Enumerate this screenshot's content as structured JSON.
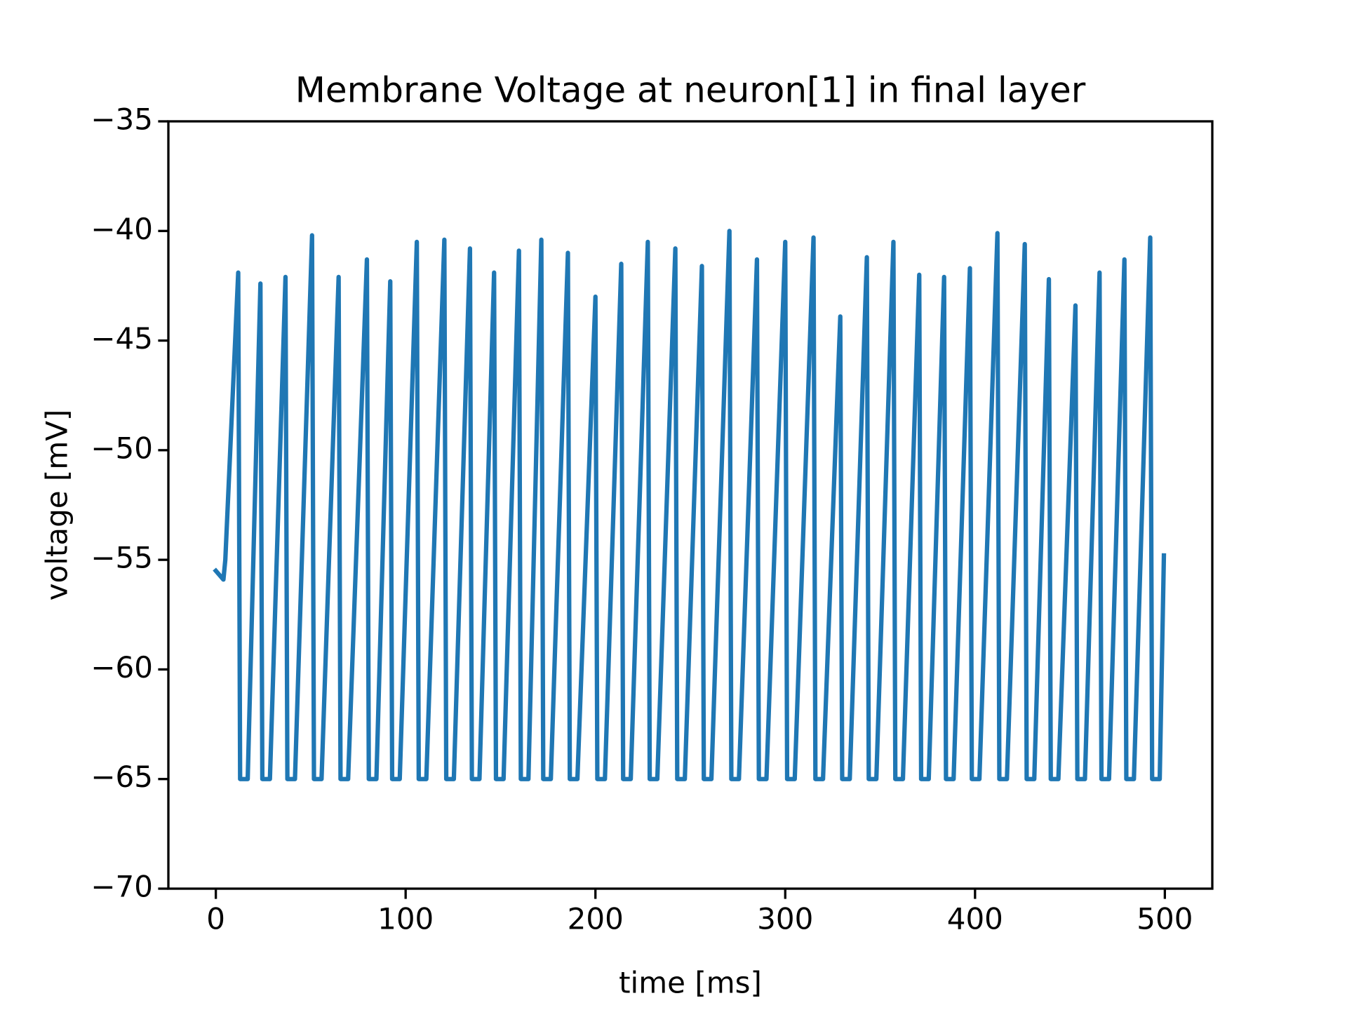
{
  "chart_data": {
    "type": "line",
    "title": "Membrane Voltage at neuron[1] in final layer",
    "xlabel": "time [ms]",
    "ylabel": "voltage [mV]",
    "xlim": [
      -25,
      525
    ],
    "ylim": [
      -70,
      -35
    ],
    "xticks": [
      0,
      100,
      200,
      300,
      400,
      500
    ],
    "yticks": [
      {
        "value": -70,
        "label": "−70"
      },
      {
        "value": -65,
        "label": "−65"
      },
      {
        "value": -60,
        "label": "−60"
      },
      {
        "value": -55,
        "label": "−55"
      },
      {
        "value": -50,
        "label": "−50"
      },
      {
        "value": -45,
        "label": "−45"
      },
      {
        "value": -40,
        "label": "−40"
      },
      {
        "value": -35,
        "label": "−35"
      }
    ],
    "grid": false,
    "series": [
      {
        "color": "#1f77b4",
        "x": [
          0,
          4,
          5,
          11.8,
          12.8,
          16.8,
          23.5,
          24.5,
          28.5,
          36.7,
          37.7,
          41.7,
          50.7,
          51.7,
          55.7,
          64.7,
          65.7,
          69.7,
          79.6,
          80.6,
          84.6,
          91.9,
          92.9,
          96.9,
          105.9,
          106.9,
          110.9,
          120.4,
          121.4,
          125.4,
          133.9,
          134.9,
          138.9,
          146.6,
          147.6,
          151.6,
          159.7,
          160.7,
          164.7,
          171.5,
          172.5,
          176.5,
          185.5,
          186.5,
          190.5,
          200,
          201,
          205,
          213.6,
          214.6,
          218.6,
          227.6,
          228.6,
          232.6,
          242.1,
          243.1,
          247.1,
          256.1,
          257.1,
          261.1,
          270.6,
          271.6,
          275.6,
          285.1,
          286.1,
          290.1,
          300,
          301,
          305,
          314.9,
          315.9,
          319.9,
          329,
          330,
          334,
          343,
          344,
          348,
          357,
          358,
          362,
          370.6,
          371.6,
          375.6,
          383.7,
          384.7,
          388.7,
          397.3,
          398.3,
          402.3,
          411.8,
          412.8,
          416.8,
          426.2,
          427.2,
          431.2,
          438.9,
          439.9,
          443.9,
          452.9,
          453.9,
          457.9,
          465.6,
          466.6,
          470.6,
          478.7,
          479.7,
          483.7,
          492.3,
          493.3,
          497.3,
          499.5
        ],
        "values": [
          -55.5,
          -55.9,
          -55,
          -41.9,
          -65,
          -65,
          -42.4,
          -65,
          -65,
          -42.1,
          -65,
          -65,
          -40.2,
          -65,
          -65,
          -42.1,
          -65,
          -65,
          -41.3,
          -65,
          -65,
          -42.3,
          -65,
          -65,
          -40.5,
          -65,
          -65,
          -40.4,
          -65,
          -65,
          -40.8,
          -65,
          -65,
          -41.9,
          -65,
          -65,
          -40.9,
          -65,
          -65,
          -40.4,
          -65,
          -65,
          -41.0,
          -65,
          -65,
          -43.0,
          -65,
          -65,
          -41.5,
          -65,
          -65,
          -40.5,
          -65,
          -65,
          -40.8,
          -65,
          -65,
          -41.6,
          -65,
          -65,
          -40.0,
          -65,
          -65,
          -41.3,
          -65,
          -65,
          -40.5,
          -65,
          -65,
          -40.3,
          -65,
          -65,
          -43.9,
          -65,
          -65,
          -41.2,
          -65,
          -65,
          -40.5,
          -65,
          -65,
          -42.0,
          -65,
          -65,
          -42.1,
          -65,
          -65,
          -41.7,
          -65,
          -65,
          -40.1,
          -65,
          -65,
          -40.6,
          -65,
          -65,
          -42.2,
          -65,
          -65,
          -43.4,
          -65,
          -65,
          -41.9,
          -65,
          -65,
          -41.3,
          -65,
          -65,
          -40.3,
          -65,
          -65,
          -54.8
        ]
      }
    ]
  }
}
